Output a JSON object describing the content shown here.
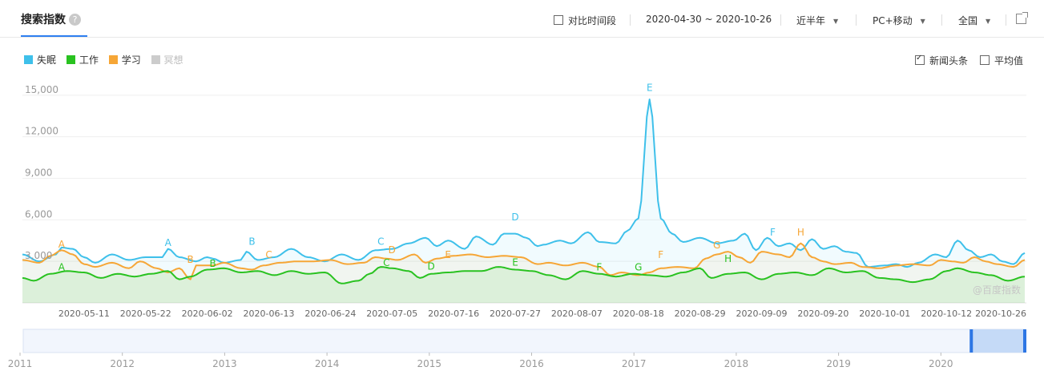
{
  "header": {
    "title": "搜索指数",
    "help_icon": "help-circle-icon",
    "compare_time_label": "对比时间段",
    "date_range": "2020-04-30 ~ 2020-10-26",
    "period_select": "近半年",
    "device_select": "PC+移动",
    "region_select": "全国",
    "external_icon": "external-link-icon"
  },
  "options": {
    "news_label": "新闻头条",
    "news_checked": true,
    "avg_label": "平均值",
    "avg_checked": false
  },
  "watermark": "@百度指数",
  "chart_data": {
    "type": "area",
    "title": "",
    "xlabel": "",
    "ylabel": "",
    "ylim": [
      0,
      15800
    ],
    "y_ticks": [
      3000,
      6000,
      9000,
      12000,
      15000
    ],
    "y_tick_labels": [
      "3,000",
      "6,000",
      "9,000",
      "12,000",
      "15,000"
    ],
    "x_tick_labels": [
      "2020-05-11",
      "2020-05-22",
      "2020-06-02",
      "2020-06-13",
      "2020-06-24",
      "2020-07-05",
      "2020-07-16",
      "2020-07-27",
      "2020-08-07",
      "2020-08-18",
      "2020-08-29",
      "2020-09-09",
      "2020-09-20",
      "2020-10-01",
      "2020-10-12",
      "2020-10-26"
    ],
    "x_tick_days": [
      11,
      22,
      33,
      44,
      55,
      66,
      77,
      88,
      99,
      110,
      121,
      132,
      143,
      154,
      165,
      179
    ],
    "x_range_days": [
      0,
      179
    ],
    "start_date": "2020-04-30",
    "grid": true,
    "legend_position": "top-left",
    "series": [
      {
        "name": "失眠",
        "color": "#3ec0ea",
        "active": true,
        "anchors": [
          [
            0,
            3500
          ],
          [
            3,
            3000
          ],
          [
            6,
            3500
          ],
          [
            7,
            4000
          ],
          [
            9,
            3900
          ],
          [
            11,
            3300
          ],
          [
            13,
            2900
          ],
          [
            16,
            3500
          ],
          [
            19,
            3100
          ],
          [
            22,
            3300
          ],
          [
            25,
            3300
          ],
          [
            26,
            3900
          ],
          [
            28,
            3300
          ],
          [
            31,
            3000
          ],
          [
            33,
            3300
          ],
          [
            34,
            3200
          ],
          [
            36,
            2900
          ],
          [
            39,
            3100
          ],
          [
            40,
            3700
          ],
          [
            42,
            3100
          ],
          [
            45,
            3300
          ],
          [
            48,
            3900
          ],
          [
            51,
            3300
          ],
          [
            54,
            3000
          ],
          [
            57,
            3500
          ],
          [
            60,
            3100
          ],
          [
            63,
            3800
          ],
          [
            66,
            3900
          ],
          [
            69,
            4300
          ],
          [
            72,
            4700
          ],
          [
            74,
            4100
          ],
          [
            76,
            4500
          ],
          [
            79,
            3900
          ],
          [
            81,
            4800
          ],
          [
            84,
            4200
          ],
          [
            86,
            5000
          ],
          [
            88,
            5000
          ],
          [
            90,
            4700
          ],
          [
            92,
            4100
          ],
          [
            93,
            4200
          ],
          [
            96,
            4500
          ],
          [
            98,
            4300
          ],
          [
            101,
            5100
          ],
          [
            103,
            4400
          ],
          [
            106,
            4300
          ],
          [
            108,
            5200
          ],
          [
            110,
            6100
          ],
          [
            112,
            14700
          ],
          [
            114,
            6100
          ],
          [
            116,
            5000
          ],
          [
            118,
            4400
          ],
          [
            121,
            4700
          ],
          [
            124,
            4300
          ],
          [
            127,
            4500
          ],
          [
            129,
            5000
          ],
          [
            131,
            3800
          ],
          [
            133,
            4700
          ],
          [
            135,
            4100
          ],
          [
            137,
            4300
          ],
          [
            139,
            3800
          ],
          [
            141,
            4600
          ],
          [
            143,
            3900
          ],
          [
            145,
            4100
          ],
          [
            147,
            3700
          ],
          [
            149,
            3600
          ],
          [
            151,
            2600
          ],
          [
            154,
            2700
          ],
          [
            156,
            2800
          ],
          [
            158,
            2600
          ],
          [
            160,
            2900
          ],
          [
            163,
            3500
          ],
          [
            165,
            3300
          ],
          [
            167,
            4500
          ],
          [
            169,
            3800
          ],
          [
            171,
            3300
          ],
          [
            173,
            3500
          ],
          [
            175,
            3000
          ],
          [
            177,
            2800
          ],
          [
            179,
            3600
          ]
        ]
      },
      {
        "name": "工作",
        "color": "#29c220",
        "active": true,
        "anchors": [
          [
            0,
            1800
          ],
          [
            2,
            1600
          ],
          [
            5,
            2100
          ],
          [
            8,
            2300
          ],
          [
            11,
            2200
          ],
          [
            14,
            1800
          ],
          [
            17,
            2100
          ],
          [
            20,
            1900
          ],
          [
            23,
            2100
          ],
          [
            26,
            2300
          ],
          [
            28,
            1700
          ],
          [
            30,
            1900
          ],
          [
            33,
            2400
          ],
          [
            36,
            2500
          ],
          [
            39,
            2200
          ],
          [
            42,
            2300
          ],
          [
            45,
            2000
          ],
          [
            48,
            2300
          ],
          [
            51,
            2100
          ],
          [
            54,
            2200
          ],
          [
            57,
            1400
          ],
          [
            60,
            1600
          ],
          [
            62,
            2100
          ],
          [
            64,
            2600
          ],
          [
            66,
            2500
          ],
          [
            69,
            2300
          ],
          [
            71,
            1800
          ],
          [
            73,
            2100
          ],
          [
            76,
            2200
          ],
          [
            79,
            2300
          ],
          [
            82,
            2300
          ],
          [
            85,
            2600
          ],
          [
            88,
            2400
          ],
          [
            91,
            2300
          ],
          [
            94,
            2000
          ],
          [
            97,
            1700
          ],
          [
            100,
            2300
          ],
          [
            103,
            2100
          ],
          [
            106,
            1900
          ],
          [
            109,
            2100
          ],
          [
            112,
            2000
          ],
          [
            115,
            1900
          ],
          [
            118,
            2200
          ],
          [
            121,
            2500
          ],
          [
            123,
            1800
          ],
          [
            126,
            2100
          ],
          [
            129,
            2200
          ],
          [
            132,
            1700
          ],
          [
            135,
            2100
          ],
          [
            138,
            2200
          ],
          [
            141,
            2000
          ],
          [
            144,
            2500
          ],
          [
            147,
            2200
          ],
          [
            150,
            2300
          ],
          [
            153,
            1800
          ],
          [
            156,
            1700
          ],
          [
            159,
            1500
          ],
          [
            162,
            1700
          ],
          [
            165,
            2300
          ],
          [
            167,
            2500
          ],
          [
            170,
            2200
          ],
          [
            173,
            2000
          ],
          [
            176,
            1600
          ],
          [
            179,
            1900
          ]
        ]
      },
      {
        "name": "学习",
        "color": "#f6a636",
        "active": true,
        "anchors": [
          [
            0,
            3100
          ],
          [
            3,
            2900
          ],
          [
            5,
            3400
          ],
          [
            7,
            3800
          ],
          [
            9,
            3500
          ],
          [
            11,
            2800
          ],
          [
            13,
            2600
          ],
          [
            16,
            2900
          ],
          [
            19,
            2500
          ],
          [
            21,
            3000
          ],
          [
            24,
            2500
          ],
          [
            26,
            2200
          ],
          [
            28,
            2500
          ],
          [
            30,
            1700
          ],
          [
            31,
            2700
          ],
          [
            34,
            2700
          ],
          [
            36,
            2900
          ],
          [
            39,
            2500
          ],
          [
            41,
            2400
          ],
          [
            43,
            2700
          ],
          [
            46,
            2900
          ],
          [
            49,
            3000
          ],
          [
            52,
            3000
          ],
          [
            55,
            3100
          ],
          [
            58,
            2800
          ],
          [
            61,
            2900
          ],
          [
            63,
            3300
          ],
          [
            65,
            3200
          ],
          [
            67,
            3100
          ],
          [
            70,
            3500
          ],
          [
            72,
            2900
          ],
          [
            74,
            3200
          ],
          [
            77,
            3400
          ],
          [
            80,
            3500
          ],
          [
            83,
            3300
          ],
          [
            86,
            3400
          ],
          [
            89,
            3300
          ],
          [
            92,
            2800
          ],
          [
            94,
            2900
          ],
          [
            97,
            2700
          ],
          [
            100,
            2900
          ],
          [
            103,
            2600
          ],
          [
            105,
            2000
          ],
          [
            107,
            2200
          ],
          [
            110,
            2000
          ],
          [
            112,
            2200
          ],
          [
            114,
            2500
          ],
          [
            117,
            2600
          ],
          [
            120,
            2500
          ],
          [
            122,
            3200
          ],
          [
            124,
            3500
          ],
          [
            126,
            3700
          ],
          [
            128,
            3300
          ],
          [
            130,
            2900
          ],
          [
            132,
            3700
          ],
          [
            135,
            3500
          ],
          [
            137,
            3300
          ],
          [
            139,
            4300
          ],
          [
            141,
            3300
          ],
          [
            143,
            3000
          ],
          [
            145,
            2800
          ],
          [
            148,
            2900
          ],
          [
            150,
            2600
          ],
          [
            153,
            2500
          ],
          [
            156,
            2700
          ],
          [
            159,
            2800
          ],
          [
            162,
            2700
          ],
          [
            164,
            3100
          ],
          [
            166,
            3000
          ],
          [
            168,
            2900
          ],
          [
            170,
            3300
          ],
          [
            172,
            3000
          ],
          [
            174,
            2800
          ],
          [
            177,
            2600
          ],
          [
            179,
            3100
          ]
        ]
      },
      {
        "name": "冥想",
        "color": "#cccccc",
        "active": false,
        "anchors": []
      }
    ],
    "annotations": [
      {
        "label": "A",
        "series": "学习",
        "day": 7,
        "y": 4000
      },
      {
        "label": "A",
        "series": "工作",
        "day": 7,
        "y": 2350
      },
      {
        "label": "A",
        "series": "失眠",
        "day": 26,
        "y": 4100
      },
      {
        "label": "B",
        "series": "学习",
        "day": 30,
        "y": 2900
      },
      {
        "label": "B",
        "series": "工作",
        "day": 34,
        "y": 2600
      },
      {
        "label": "B",
        "series": "失眠",
        "day": 41,
        "y": 4200
      },
      {
        "label": "C",
        "series": "学习",
        "day": 44,
        "y": 3250
      },
      {
        "label": "C",
        "series": "失眠",
        "day": 64,
        "y": 4200
      },
      {
        "label": "C",
        "series": "工作",
        "day": 65,
        "y": 2650
      },
      {
        "label": "D",
        "series": "学习",
        "day": 66,
        "y": 3580
      },
      {
        "label": "D",
        "series": "工作",
        "day": 73,
        "y": 2400
      },
      {
        "label": "E",
        "series": "学习",
        "day": 76,
        "y": 3250
      },
      {
        "label": "D",
        "series": "失眠",
        "day": 88,
        "y": 5950
      },
      {
        "label": "E",
        "series": "工作",
        "day": 88,
        "y": 2700
      },
      {
        "label": "F",
        "series": "工作",
        "day": 103,
        "y": 2350
      },
      {
        "label": "G",
        "series": "工作",
        "day": 110,
        "y": 2350
      },
      {
        "label": "E",
        "series": "失眠",
        "day": 112,
        "y": 15300
      },
      {
        "label": "F",
        "series": "学习",
        "day": 114,
        "y": 3250
      },
      {
        "label": "G",
        "series": "学习",
        "day": 124,
        "y": 3950
      },
      {
        "label": "H",
        "series": "工作",
        "day": 126,
        "y": 2950
      },
      {
        "label": "F",
        "series": "失眠",
        "day": 134,
        "y": 4850
      },
      {
        "label": "H",
        "series": "学习",
        "day": 139,
        "y": 4850
      }
    ]
  },
  "timeline": {
    "years": [
      "2011",
      "2012",
      "2013",
      "2014",
      "2015",
      "2016",
      "2017",
      "2018",
      "2019",
      "2020"
    ],
    "selection_start": 0.9466,
    "selection_end": 1.0
  }
}
